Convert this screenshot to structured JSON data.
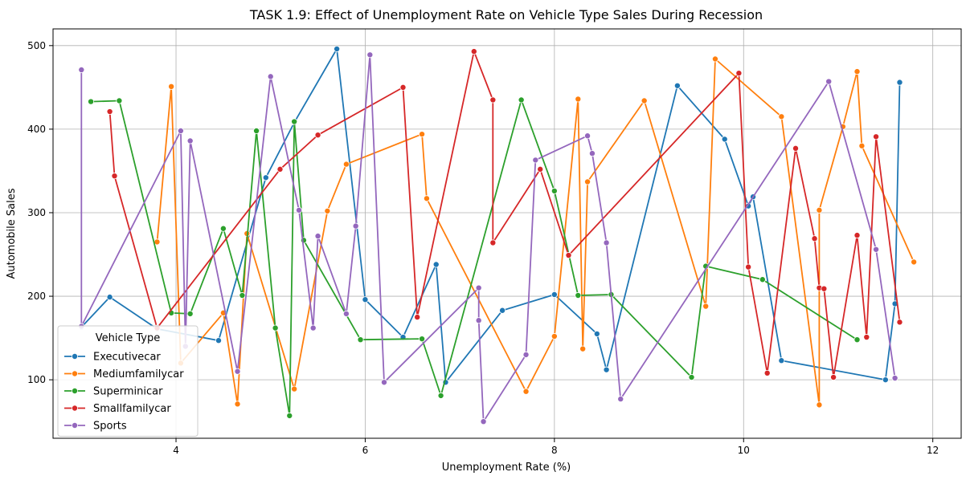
{
  "chart_data": {
    "type": "line",
    "title": "TASK 1.9: Effect of Unemployment Rate on Vehicle Type Sales During Recession",
    "xlabel": "Unemployment Rate (%)",
    "ylabel": "Automobile Sales",
    "xlim": [
      2.7,
      12.3
    ],
    "ylim": [
      30,
      520
    ],
    "xticks": [
      4,
      6,
      8,
      10,
      12
    ],
    "yticks": [
      100,
      200,
      300,
      400,
      500
    ],
    "grid": true,
    "legend": {
      "title": "Vehicle Type",
      "position": "lower-left"
    },
    "series": [
      {
        "name": "Executivecar",
        "color": "#1f77b4",
        "points": [
          [
            3.0,
            163
          ],
          [
            3.3,
            199
          ],
          [
            3.8,
            161
          ],
          [
            4.45,
            147
          ],
          [
            4.95,
            342
          ],
          [
            5.25,
            408
          ],
          [
            5.7,
            496
          ],
          [
            6.0,
            196
          ],
          [
            6.4,
            151
          ],
          [
            6.75,
            238
          ],
          [
            6.85,
            97
          ],
          [
            7.45,
            183
          ],
          [
            8.0,
            202
          ],
          [
            8.45,
            155
          ],
          [
            8.55,
            112
          ],
          [
            9.3,
            452
          ],
          [
            9.8,
            388
          ],
          [
            10.05,
            308
          ],
          [
            10.1,
            319
          ],
          [
            10.4,
            123
          ],
          [
            11.5,
            100
          ],
          [
            11.6,
            191
          ],
          [
            11.65,
            456
          ]
        ]
      },
      {
        "name": "Mediumfamilycar",
        "color": "#ff7f0e",
        "points": [
          [
            3.8,
            265
          ],
          [
            3.95,
            451
          ],
          [
            4.05,
            120
          ],
          [
            4.5,
            180
          ],
          [
            4.65,
            71
          ],
          [
            4.75,
            275
          ],
          [
            5.25,
            89
          ],
          [
            5.6,
            302
          ],
          [
            5.8,
            358
          ],
          [
            6.6,
            394
          ],
          [
            6.65,
            317
          ],
          [
            7.7,
            86
          ],
          [
            8.0,
            152
          ],
          [
            8.25,
            436
          ],
          [
            8.3,
            137
          ],
          [
            8.35,
            337
          ],
          [
            8.95,
            434
          ],
          [
            9.6,
            188
          ],
          [
            9.7,
            484
          ],
          [
            10.4,
            415
          ],
          [
            10.8,
            70
          ],
          [
            10.8,
            303
          ],
          [
            11.05,
            403
          ],
          [
            11.2,
            469
          ],
          [
            11.25,
            380
          ],
          [
            11.8,
            241
          ]
        ]
      },
      {
        "name": "Superminicar",
        "color": "#2ca02c",
        "points": [
          [
            3.1,
            433
          ],
          [
            3.4,
            434
          ],
          [
            3.95,
            180
          ],
          [
            4.15,
            179
          ],
          [
            4.5,
            281
          ],
          [
            4.7,
            201
          ],
          [
            4.85,
            398
          ],
          [
            5.05,
            162
          ],
          [
            5.2,
            57
          ],
          [
            5.25,
            409
          ],
          [
            5.35,
            267
          ],
          [
            5.95,
            148
          ],
          [
            6.6,
            149
          ],
          [
            6.8,
            81
          ],
          [
            7.65,
            435
          ],
          [
            8.0,
            326
          ],
          [
            8.25,
            201
          ],
          [
            8.6,
            202
          ],
          [
            9.45,
            103
          ],
          [
            9.6,
            236
          ],
          [
            10.2,
            220
          ],
          [
            11.2,
            148
          ]
        ]
      },
      {
        "name": "Smallfamilycar",
        "color": "#d62728",
        "points": [
          [
            3.3,
            421
          ],
          [
            3.35,
            344
          ],
          [
            3.8,
            162
          ],
          [
            5.1,
            352
          ],
          [
            5.5,
            393
          ],
          [
            6.4,
            450
          ],
          [
            6.55,
            175
          ],
          [
            7.15,
            493
          ],
          [
            7.35,
            435
          ],
          [
            7.35,
            264
          ],
          [
            7.85,
            352
          ],
          [
            8.15,
            249
          ],
          [
            9.95,
            467
          ],
          [
            10.05,
            235
          ],
          [
            10.25,
            108
          ],
          [
            10.55,
            377
          ],
          [
            10.75,
            269
          ],
          [
            10.8,
            210
          ],
          [
            10.85,
            209
          ],
          [
            10.95,
            103
          ],
          [
            11.2,
            273
          ],
          [
            11.3,
            151
          ],
          [
            11.4,
            391
          ],
          [
            11.65,
            169
          ]
        ]
      },
      {
        "name": "Sports",
        "color": "#9467bd",
        "points": [
          [
            3.0,
            471
          ],
          [
            3.0,
            164
          ],
          [
            4.05,
            398
          ],
          [
            4.1,
            140
          ],
          [
            4.15,
            386
          ],
          [
            4.65,
            110
          ],
          [
            5.0,
            463
          ],
          [
            5.3,
            303
          ],
          [
            5.45,
            162
          ],
          [
            5.5,
            272
          ],
          [
            5.8,
            179
          ],
          [
            5.9,
            284
          ],
          [
            6.05,
            489
          ],
          [
            6.2,
            97
          ],
          [
            7.2,
            210
          ],
          [
            7.2,
            171
          ],
          [
            7.25,
            50
          ],
          [
            7.7,
            130
          ],
          [
            7.8,
            363
          ],
          [
            8.35,
            392
          ],
          [
            8.4,
            371
          ],
          [
            8.55,
            264
          ],
          [
            8.7,
            77
          ],
          [
            10.9,
            457
          ],
          [
            11.4,
            256
          ],
          [
            11.6,
            102
          ]
        ]
      }
    ]
  }
}
